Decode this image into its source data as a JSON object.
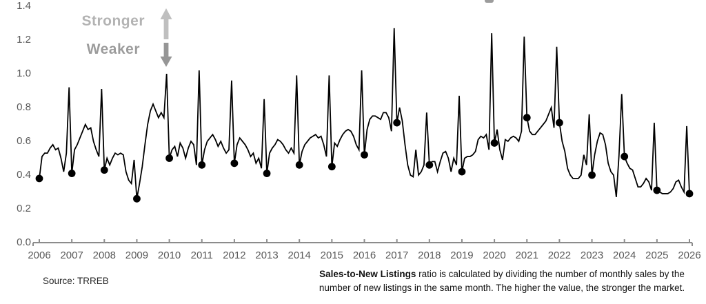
{
  "annotations": {
    "stronger_label": "Stronger",
    "weaker_label": "Weaker"
  },
  "footer": {
    "source": "Source: TRREB",
    "footnote_bold": "Sales-to-New Listings",
    "footnote_line1_rest": " ratio is calculated by dividing the number of monthly sales by the",
    "footnote_line2": "number of new listings in the same month. The higher the value, the stronger the market."
  },
  "colors": {
    "line": "#000000",
    "marker": "#000000",
    "axis": "#8c8c8c",
    "tick_label": "#595959",
    "stronger_text": "#b3b3b3",
    "weaker_text": "#9c9c9c",
    "arrow_up": "#bfbfbf",
    "arrow_down": "#969696"
  },
  "chart_data": {
    "type": "line",
    "title": "",
    "ylabel": "",
    "xlabel": "",
    "ylim": [
      0.0,
      1.4
    ],
    "y_tick_labels": [
      "0.0",
      "0.2",
      "0.4",
      "0.6",
      "0.8",
      "1.0",
      "1.2",
      "1.4"
    ],
    "x_tick_labels": [
      "2006",
      "2007",
      "2008",
      "2009",
      "2010",
      "2011",
      "2012",
      "2013",
      "2014",
      "2015",
      "2016",
      "2017",
      "2018",
      "2019",
      "2020",
      "2021",
      "2022",
      "2023",
      "2024",
      "2025",
      "2026"
    ],
    "grid": false,
    "legend": "none",
    "marker_note": "filled black circle on each January value",
    "series": [
      {
        "name": "Sales-to-New Listings ratio (monthly)",
        "years": [
          {
            "year": 2006,
            "values": [
              0.38,
              0.51,
              0.53,
              0.53,
              0.56,
              0.58,
              0.55,
              0.56,
              0.5,
              0.42,
              0.53,
              0.92
            ]
          },
          {
            "year": 2007,
            "values": [
              0.41,
              0.55,
              0.58,
              0.62,
              0.66,
              0.7,
              0.67,
              0.68,
              0.6,
              0.55,
              0.51,
              0.91
            ]
          },
          {
            "year": 2008,
            "values": [
              0.43,
              0.5,
              0.46,
              0.5,
              0.53,
              0.52,
              0.53,
              0.52,
              0.42,
              0.37,
              0.35,
              0.49
            ]
          },
          {
            "year": 2009,
            "values": [
              0.26,
              0.35,
              0.45,
              0.58,
              0.7,
              0.78,
              0.82,
              0.78,
              0.74,
              0.77,
              0.74,
              1.0
            ]
          },
          {
            "year": 2010,
            "values": [
              0.5,
              0.55,
              0.57,
              0.51,
              0.59,
              0.56,
              0.5,
              0.56,
              0.6,
              0.58,
              0.46,
              1.02
            ]
          },
          {
            "year": 2011,
            "values": [
              0.46,
              0.55,
              0.6,
              0.62,
              0.64,
              0.61,
              0.57,
              0.6,
              0.56,
              0.53,
              0.55,
              0.96
            ]
          },
          {
            "year": 2012,
            "values": [
              0.47,
              0.58,
              0.62,
              0.6,
              0.58,
              0.55,
              0.51,
              0.53,
              0.47,
              0.5,
              0.44,
              0.85
            ]
          },
          {
            "year": 2013,
            "values": [
              0.41,
              0.53,
              0.56,
              0.58,
              0.61,
              0.6,
              0.58,
              0.55,
              0.53,
              0.56,
              0.53,
              0.99
            ]
          },
          {
            "year": 2014,
            "values": [
              0.46,
              0.54,
              0.58,
              0.6,
              0.62,
              0.63,
              0.64,
              0.62,
              0.63,
              0.58,
              0.51,
              0.99
            ]
          },
          {
            "year": 2015,
            "values": [
              0.45,
              0.59,
              0.57,
              0.61,
              0.64,
              0.66,
              0.67,
              0.66,
              0.63,
              0.58,
              0.55,
              1.02
            ]
          },
          {
            "year": 2016,
            "values": [
              0.52,
              0.67,
              0.73,
              0.75,
              0.75,
              0.74,
              0.73,
              0.77,
              0.77,
              0.74,
              0.66,
              1.27
            ]
          },
          {
            "year": 2017,
            "values": [
              0.71,
              0.8,
              0.72,
              0.58,
              0.46,
              0.4,
              0.39,
              0.55,
              0.4,
              0.42,
              0.46,
              0.77
            ]
          },
          {
            "year": 2018,
            "values": [
              0.46,
              0.48,
              0.48,
              0.42,
              0.48,
              0.53,
              0.54,
              0.5,
              0.42,
              0.5,
              0.46,
              0.87
            ]
          },
          {
            "year": 2019,
            "values": [
              0.42,
              0.5,
              0.51,
              0.51,
              0.52,
              0.54,
              0.61,
              0.63,
              0.62,
              0.64,
              0.55,
              1.24
            ]
          },
          {
            "year": 2020,
            "values": [
              0.59,
              0.67,
              0.55,
              0.49,
              0.61,
              0.6,
              0.62,
              0.63,
              0.62,
              0.6,
              0.66,
              1.22
            ]
          },
          {
            "year": 2021,
            "values": [
              0.74,
              0.66,
              0.64,
              0.64,
              0.66,
              0.68,
              0.7,
              0.72,
              0.76,
              0.8,
              0.68,
              1.16
            ]
          },
          {
            "year": 2022,
            "values": [
              0.71,
              0.6,
              0.54,
              0.44,
              0.4,
              0.38,
              0.38,
              0.38,
              0.4,
              0.52,
              0.46,
              0.76
            ]
          },
          {
            "year": 2023,
            "values": [
              0.4,
              0.52,
              0.6,
              0.65,
              0.64,
              0.58,
              0.47,
              0.42,
              0.4,
              0.27,
              0.52,
              0.88
            ]
          },
          {
            "year": 2024,
            "values": [
              0.51,
              0.47,
              0.44,
              0.43,
              0.38,
              0.33,
              0.33,
              0.35,
              0.38,
              0.36,
              0.31,
              0.71
            ]
          },
          {
            "year": 2025,
            "values": [
              0.31,
              0.3,
              0.29,
              0.29,
              0.29,
              0.3,
              0.32,
              0.36,
              0.37,
              0.33,
              0.3,
              0.69
            ]
          },
          {
            "year": 2026,
            "values": [
              0.29
            ]
          }
        ]
      }
    ],
    "january_marker_values": [
      0.38,
      0.41,
      0.43,
      0.26,
      0.5,
      0.46,
      0.47,
      0.41,
      0.46,
      0.45,
      0.52,
      0.71,
      0.46,
      0.42,
      0.59,
      0.74,
      0.71,
      0.4,
      0.51,
      0.31,
      0.29
    ]
  }
}
